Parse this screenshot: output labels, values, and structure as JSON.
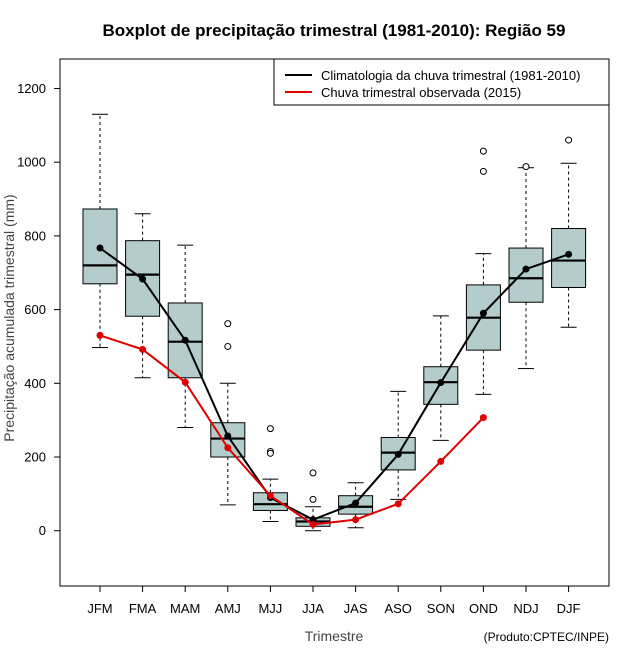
{
  "chart_data": {
    "type": "boxplot",
    "title": "Boxplot de precipitação trimestral (1981-2010): Região 59",
    "xlabel": "Trimestre",
    "ylabel": "Precipitação acumulada trimestral (mm)",
    "ylim": [
      -150,
      1280
    ],
    "yticks": [
      0,
      200,
      400,
      600,
      800,
      1000,
      1200
    ],
    "categories": [
      "JFM",
      "FMA",
      "MAM",
      "AMJ",
      "MJJ",
      "JJA",
      "JAS",
      "ASO",
      "SON",
      "OND",
      "NDJ",
      "DJF"
    ],
    "boxes": [
      {
        "whisker_low": 497,
        "q1": 670,
        "median": 720,
        "q3": 873,
        "whisker_high": 1130,
        "outliers": []
      },
      {
        "whisker_low": 415,
        "q1": 582,
        "median": 695,
        "q3": 787,
        "whisker_high": 860,
        "outliers": []
      },
      {
        "whisker_low": 280,
        "q1": 415,
        "median": 513,
        "q3": 618,
        "whisker_high": 775,
        "outliers": []
      },
      {
        "whisker_low": 70,
        "q1": 200,
        "median": 250,
        "q3": 293,
        "whisker_high": 400,
        "outliers": [
          562,
          500
        ]
      },
      {
        "whisker_low": 25,
        "q1": 55,
        "median": 72,
        "q3": 103,
        "whisker_high": 140,
        "outliers": [
          277,
          215,
          210
        ]
      },
      {
        "whisker_low": 0,
        "q1": 12,
        "median": 25,
        "q3": 35,
        "whisker_high": 65,
        "outliers": [
          157,
          85
        ]
      },
      {
        "whisker_low": 8,
        "q1": 45,
        "median": 65,
        "q3": 95,
        "whisker_high": 130,
        "outliers": []
      },
      {
        "whisker_low": 85,
        "q1": 165,
        "median": 212,
        "q3": 253,
        "whisker_high": 378,
        "outliers": []
      },
      {
        "whisker_low": 245,
        "q1": 343,
        "median": 403,
        "q3": 445,
        "whisker_high": 583,
        "outliers": []
      },
      {
        "whisker_low": 370,
        "q1": 490,
        "median": 578,
        "q3": 667,
        "whisker_high": 752,
        "outliers": [
          1030,
          975
        ]
      },
      {
        "whisker_low": 440,
        "q1": 620,
        "median": 685,
        "q3": 767,
        "whisker_high": 985,
        "outliers": [
          988
        ]
      },
      {
        "whisker_low": 552,
        "q1": 660,
        "median": 733,
        "q3": 820,
        "whisker_high": 997,
        "outliers": [
          1060
        ]
      }
    ],
    "series": [
      {
        "name": "Climatologia da chuva trimestral (1981-2010)",
        "color": "#000000",
        "values": [
          767,
          683,
          517,
          257,
          90,
          30,
          75,
          207,
          402,
          590,
          710,
          750
        ]
      },
      {
        "name": "Chuva trimestral observada (2015)",
        "color": "#e00000",
        "values": [
          530,
          492,
          403,
          225,
          95,
          17,
          30,
          73,
          188,
          307,
          null,
          null
        ]
      }
    ],
    "legend_position": "top-right",
    "box_fill": "#b4cccc",
    "credit": "(Produto:CPTEC/INPE)"
  }
}
